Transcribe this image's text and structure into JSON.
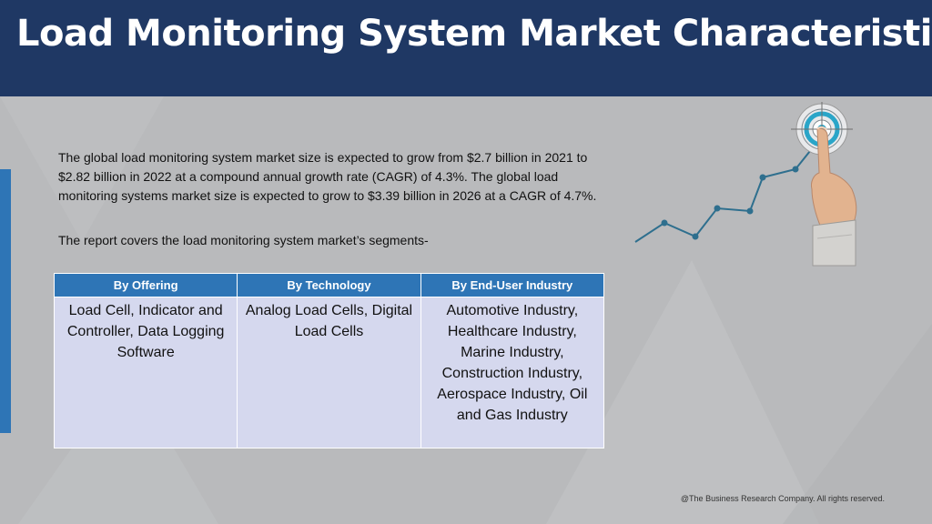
{
  "header": {
    "title": "Load Monitoring System Market Characteristics"
  },
  "intro": {
    "paragraph": "The global load monitoring system market size is expected to grow from $2.7 billion in 2021 to $2.82 billion in 2022 at a compound annual growth rate (CAGR) of 4.3%. The global load monitoring systems market size is expected to grow to $3.39 billion in 2026 at a CAGR of 4.7%.",
    "segments_line": "The report covers the load monitoring system market’s segments-"
  },
  "segments_table": {
    "headers": [
      "By Offering",
      "By Technology",
      "By End-User Industry"
    ],
    "cells": [
      "Load Cell, Indicator and Controller, Data Logging Software",
      "Analog Load Cells, Digital Load Cells",
      "Automotive Industry, Healthcare Industry, Marine Industry, Construction Industry, Aerospace Industry, Oil and Gas Industry"
    ]
  },
  "footer": {
    "copyright": "@The Business Research Company. All rights reserved."
  },
  "illustration": {
    "icon": "finger-pointing-target-growth-chart-icon"
  },
  "colors": {
    "header_bg": "#1f3864",
    "accent_blue": "#2e75b6",
    "table_cell_bg": "#d5d8ee",
    "page_bg": "#b9babc",
    "chart_line": "#2e6f8e"
  }
}
